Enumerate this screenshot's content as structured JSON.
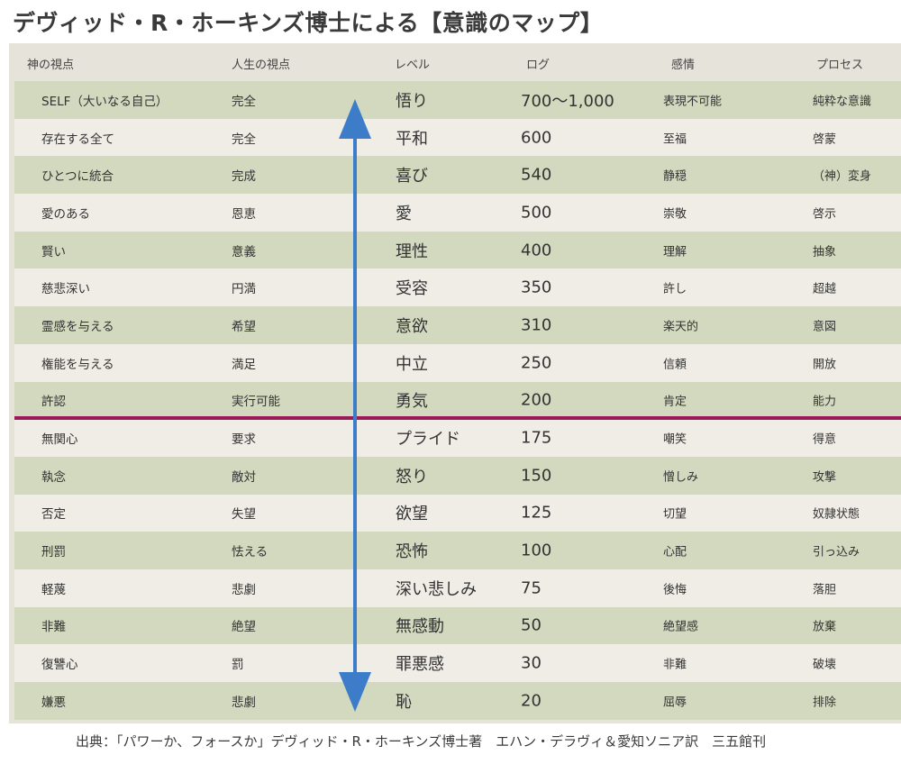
{
  "title": "デヴィッド・R・ホーキンズ博士による【意識のマップ】",
  "headers": [
    "神の視点",
    "人生の視点",
    "レベル",
    "ログ",
    "感情",
    "プロセス"
  ],
  "rows": [
    [
      "SELF（大いなる自己）",
      "完全",
      "悟り",
      "700〜1,000",
      "表現不可能",
      "純粋な意識"
    ],
    [
      "存在する全て",
      "完全",
      "平和",
      "600",
      "至福",
      "啓蒙"
    ],
    [
      "ひとつに統合",
      "完成",
      "喜び",
      "540",
      "静穏",
      "（神）変身"
    ],
    [
      "愛のある",
      "恩恵",
      "愛",
      "500",
      "崇敬",
      "啓示"
    ],
    [
      "賢い",
      "意義",
      "理性",
      "400",
      "理解",
      "抽象"
    ],
    [
      "慈悲深い",
      "円満",
      "受容",
      "350",
      "許し",
      "超越"
    ],
    [
      "霊感を与える",
      "希望",
      "意欲",
      "310",
      "楽天的",
      "意図"
    ],
    [
      "権能を与える",
      "満足",
      "中立",
      "250",
      "信頼",
      "開放"
    ],
    [
      "許認",
      "実行可能",
      "勇気",
      "200",
      "肯定",
      "能力"
    ],
    [
      "無関心",
      "要求",
      "プライド",
      "175",
      "嘲笑",
      "得意"
    ],
    [
      "執念",
      "敵対",
      "怒り",
      "150",
      "憎しみ",
      "攻撃"
    ],
    [
      "否定",
      "失望",
      "欲望",
      "125",
      "切望",
      "奴隷状態"
    ],
    [
      "刑罰",
      "怯える",
      "恐怖",
      "100",
      "心配",
      "引っ込み"
    ],
    [
      "軽蔑",
      "悲劇",
      "深い悲しみ",
      "75",
      "後悔",
      "落胆"
    ],
    [
      "非難",
      "絶望",
      "無感動",
      "50",
      "絶望感",
      "放棄"
    ],
    [
      "復讐心",
      "罰",
      "罪悪感",
      "30",
      "非難",
      "破壊"
    ],
    [
      "嫌悪",
      "悲劇",
      "恥",
      "20",
      "屈辱",
      "排除"
    ]
  ],
  "source": "出典：「パワーか、フォースか」デヴィッド・R・ホーキンズ博士著　エハン・デラヴィ＆愛知ソニア訳　三五館刊",
  "colors": {
    "row_green": "#d2d9bf",
    "row_light": "#efede6",
    "divider": "#9b1a5a",
    "arrow": "#3d7cc9"
  },
  "icons": {
    "arrow": "double-headed-vertical-arrow"
  }
}
